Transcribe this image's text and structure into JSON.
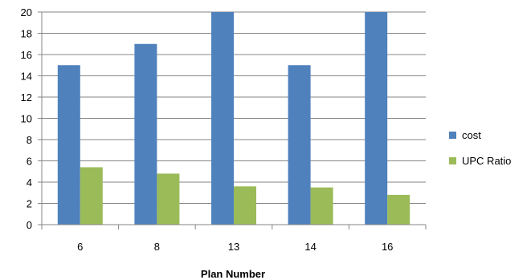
{
  "chart_data": {
    "type": "bar",
    "title": "",
    "xlabel": "Plan Number",
    "ylabel": "",
    "categories": [
      "6",
      "8",
      "13",
      "14",
      "16"
    ],
    "series": [
      {
        "name": "cost",
        "values": [
          15,
          17,
          20,
          15,
          20
        ],
        "color": "#4F81BD"
      },
      {
        "name": "UPC Ratio",
        "values": [
          5.4,
          4.8,
          3.6,
          3.5,
          2.8
        ],
        "color": "#9BBB59"
      }
    ],
    "ylim": [
      0,
      20
    ],
    "yticks": [
      0,
      2,
      4,
      6,
      8,
      10,
      12,
      14,
      16,
      18,
      20
    ],
    "grid": true,
    "legend_position": "right"
  }
}
